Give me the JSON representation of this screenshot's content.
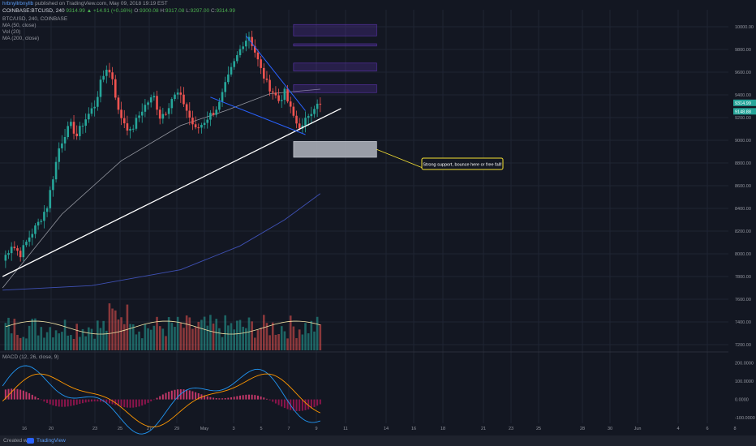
{
  "header": {
    "author": "hrbnyllrbnyllb",
    "published": "published on TradingView.com, May 09, 2018 19:19 EST"
  },
  "ohlc": {
    "symbol": "COINBASE:BTCUSD, 240",
    "price": "9314.99",
    "change": "+14.91 (+0.16%)",
    "o_label": "O:",
    "o": "9300.08",
    "h_label": "H:",
    "h": "9317.08",
    "l_label": "L:",
    "l": "9297.00",
    "c_label": "C:",
    "c": "9314.99"
  },
  "indicators": {
    "title": "BTC/USD, 240, COINBASE",
    "ma50": "MA (50, close)",
    "vol": "Vol (20)",
    "ma200": "MA (200, close)",
    "macd": "MACD (12, 26, close, 9)"
  },
  "annotation": "Strong support, bounce here or free fall!",
  "footer": {
    "created_with": "Created with",
    "brand": "TradingView"
  },
  "colors": {
    "background": "#131722",
    "up": "#26a69a",
    "down": "#ef5350",
    "support_line": "#ffffff",
    "wedge": "#2962ff",
    "macd_line": "#2196f3",
    "signal_line": "#ff9800",
    "annotation_border": "#f5e033",
    "zone_purple": "#5e35b1",
    "zone_gray": "#b2b5be"
  },
  "chart_data": {
    "type": "candlestick",
    "x_tick_labels": [
      "16",
      "20",
      "23",
      "25",
      "27",
      "29",
      "May",
      "3",
      "5",
      "7",
      "9",
      "11",
      "14",
      "16",
      "18",
      "21",
      "23",
      "25",
      "28",
      "30",
      "Jun",
      "4",
      "6",
      "8"
    ],
    "price_ticks": [
      10000,
      9800,
      9600,
      9400,
      9200,
      9000,
      8800,
      8600,
      8400,
      8200,
      8000,
      7800,
      7600,
      7400,
      7200
    ],
    "price_tick_labels": [
      "10000.00",
      "9800.00",
      "9600.00",
      "9400.00",
      "9200.00",
      "9000.00",
      "8800.00",
      "8600.00",
      "8400.00",
      "8200.00",
      "8000.00",
      "7800.00",
      "7600.00",
      "7400.00",
      "7200.00"
    ],
    "price_range": [
      7150,
      10150
    ],
    "macd_ticks": [
      200,
      100,
      0,
      -100
    ],
    "macd_tick_labels": [
      "200.0000",
      "100.0000",
      "0.0000",
      "-100.0000"
    ],
    "macd_range": [
      -130,
      250
    ],
    "last_price_label": "9314.99",
    "ma_price_label": "9148.88",
    "close_path": [
      [
        0,
        7940
      ],
      [
        3,
        8080
      ],
      [
        6,
        8000
      ],
      [
        9,
        8150
      ],
      [
        12,
        8270
      ],
      [
        15,
        8420
      ],
      [
        17,
        8680
      ],
      [
        19,
        8930
      ],
      [
        21,
        9060
      ],
      [
        23,
        9130
      ],
      [
        25,
        9040
      ],
      [
        27,
        9150
      ],
      [
        29,
        9230
      ],
      [
        31,
        9310
      ],
      [
        33,
        9500
      ],
      [
        35,
        9640
      ],
      [
        37,
        9550
      ],
      [
        39,
        9250
      ],
      [
        41,
        9160
      ],
      [
        43,
        9070
      ],
      [
        45,
        9170
      ],
      [
        47,
        9270
      ],
      [
        49,
        9340
      ],
      [
        51,
        9380
      ],
      [
        53,
        9210
      ],
      [
        55,
        9260
      ],
      [
        57,
        9370
      ],
      [
        59,
        9410
      ],
      [
        61,
        9330
      ],
      [
        63,
        9200
      ],
      [
        65,
        9090
      ],
      [
        67,
        9140
      ],
      [
        69,
        9200
      ],
      [
        71,
        9250
      ],
      [
        73,
        9320
      ],
      [
        75,
        9480
      ],
      [
        77,
        9620
      ],
      [
        79,
        9740
      ],
      [
        81,
        9860
      ],
      [
        83,
        9920
      ],
      [
        85,
        9780
      ],
      [
        87,
        9620
      ],
      [
        89,
        9500
      ],
      [
        91,
        9430
      ],
      [
        93,
        9350
      ],
      [
        95,
        9420
      ],
      [
        97,
        9270
      ],
      [
        99,
        9150
      ],
      [
        101,
        9110
      ],
      [
        103,
        9230
      ],
      [
        105,
        9300
      ],
      [
        107,
        9315
      ]
    ],
    "ma50_path": [
      [
        0,
        7700
      ],
      [
        20,
        8350
      ],
      [
        40,
        8820
      ],
      [
        60,
        9130
      ],
      [
        75,
        9260
      ],
      [
        90,
        9410
      ],
      [
        107,
        9450
      ]
    ],
    "ma200_path": [
      [
        0,
        7680
      ],
      [
        30,
        7720
      ],
      [
        60,
        7860
      ],
      [
        80,
        8070
      ],
      [
        95,
        8300
      ],
      [
        107,
        8530
      ]
    ],
    "support_line": [
      [
        0,
        7800
      ],
      [
        114,
        9280
      ]
    ],
    "wedge_upper": [
      [
        82,
        9920
      ],
      [
        102,
        9260
      ]
    ],
    "wedge_lower": [
      [
        70,
        9380
      ],
      [
        102,
        9050
      ]
    ],
    "zones": [
      {
        "color": "purple",
        "price_top": 10020,
        "price_bottom": 9920,
        "bar_from": 98,
        "bar_to": 126
      },
      {
        "color": "purple",
        "price_top": 9850,
        "price_bottom": 9830,
        "bar_from": 98,
        "bar_to": 126
      },
      {
        "color": "purple",
        "price_top": 9680,
        "price_bottom": 9610,
        "bar_from": 98,
        "bar_to": 126
      },
      {
        "color": "purple",
        "price_top": 9490,
        "price_bottom": 9420,
        "bar_from": 98,
        "bar_to": 126
      },
      {
        "color": "gray",
        "price_top": 8990,
        "price_bottom": 8850,
        "bar_from": 98,
        "bar_to": 126
      }
    ]
  }
}
